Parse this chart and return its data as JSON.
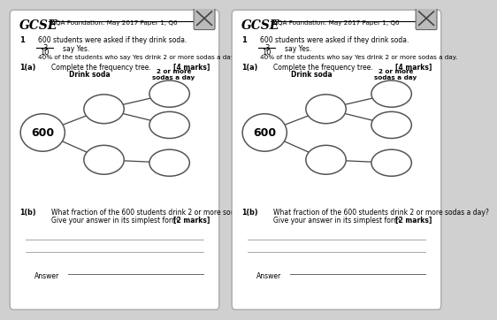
{
  "title": "AQA Foundation: May 2017 Paper 1, Q6",
  "gcse_text": "GCSE",
  "q1_text": "600 students were asked if they drink soda.",
  "fraction_num": "3",
  "fraction_den": "10",
  "fraction_suffix": "say Yes.",
  "percent_text": "40% of the students who say Yes drink 2 or more sodas a day.",
  "qa_label": "1(a)",
  "qa_text": "Complete the frequency tree.",
  "qa_marks": "[4 marks]",
  "tree_label_left": "Drink soda",
  "tree_label_right": "2 or more\nsodas a day",
  "tree_root_text": "600",
  "qb_label": "1(b)",
  "qb_text": "What fraction of the 600 students drink 2 or more sodas a day?",
  "qb_subtext": "Give your answer in its simplest form.",
  "qb_marks": "[2 marks]",
  "answer_label": "Answer",
  "bg_color": "#ffffff",
  "ellipse_edge": "#555555",
  "line_color": "#444444"
}
